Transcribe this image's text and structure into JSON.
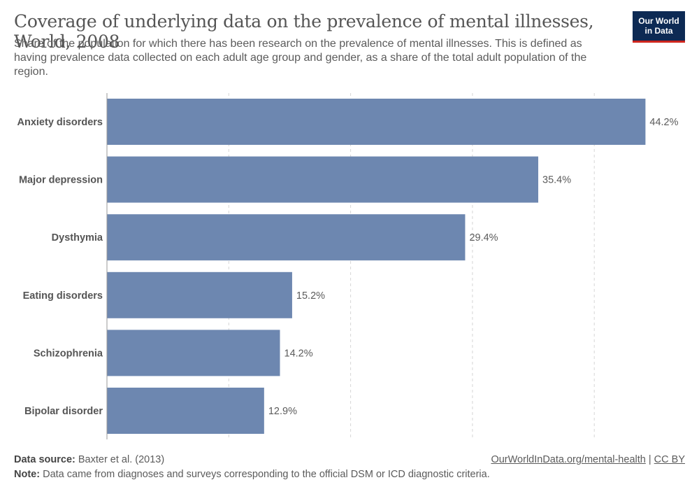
{
  "header": {
    "title": "Coverage of underlying data on the prevalence of mental illnesses, World, 2008",
    "subtitle": "Share of the population for which there has been research on the prevalence of mental illnesses. This is defined as having prevalence data collected on each adult age group and gender, as a share of the total adult population of the region.",
    "logo_line1": "Our World",
    "logo_line2": "in Data"
  },
  "chart_data": {
    "type": "bar",
    "orientation": "horizontal",
    "categories": [
      "Anxiety disorders",
      "Major depression",
      "Dysthymia",
      "Eating disorders",
      "Schizophrenia",
      "Bipolar disorder"
    ],
    "values": [
      44.2,
      35.4,
      29.4,
      15.2,
      14.2,
      12.9
    ],
    "labels": [
      "44.2%",
      "35.4%",
      "29.4%",
      "15.2%",
      "14.2%",
      "12.9%"
    ],
    "unit": "%",
    "xlim": [
      0,
      50
    ],
    "grid": true,
    "bar_color": "#6d87b0"
  },
  "footer": {
    "source_label": "Data source:",
    "source_text": "Baxter et al. (2013)",
    "note_label": "Note:",
    "note_text": "Data came from diagnoses and surveys corresponding to the official DSM or ICD diagnostic criteria.",
    "link_text": "OurWorldInData.org/mental-health",
    "separator": "|",
    "license": "CC BY"
  }
}
